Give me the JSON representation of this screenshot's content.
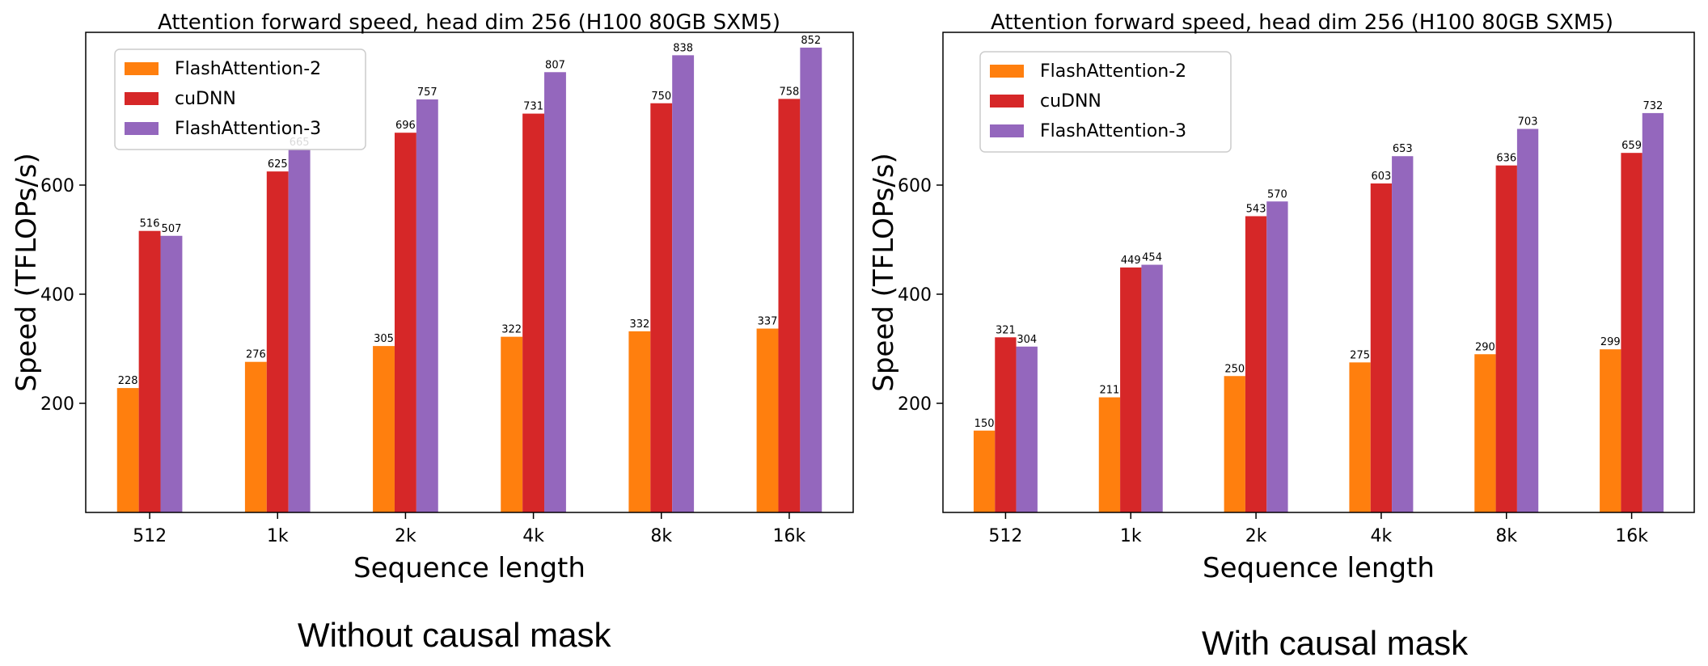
{
  "captions": {
    "left": "Without causal mask",
    "right": "With causal mask"
  },
  "colors": {
    "FlashAttention-2": "#ff7f0e",
    "cuDNN": "#d62728",
    "FlashAttention-3": "#9467bd"
  },
  "chart_data": [
    {
      "type": "bar",
      "title": "Attention forward speed, head dim 256 (H100 80GB SXM5)",
      "xlabel": "Sequence length",
      "ylabel": "Speed (TFLOPs/s)",
      "categories": [
        "512",
        "1k",
        "2k",
        "4k",
        "8k",
        "16k"
      ],
      "ylim": [
        0,
        880
      ],
      "yticks": [
        200,
        400,
        600
      ],
      "legend_position": "top-left",
      "grid": false,
      "series": [
        {
          "name": "FlashAttention-2",
          "values": [
            228,
            276,
            305,
            322,
            332,
            337
          ]
        },
        {
          "name": "cuDNN",
          "values": [
            516,
            625,
            696,
            731,
            750,
            758
          ]
        },
        {
          "name": "FlashAttention-3",
          "values": [
            507,
            665,
            757,
            807,
            838,
            852
          ]
        }
      ]
    },
    {
      "type": "bar",
      "title": "Attention forward speed, head dim 256 (H100 80GB SXM5)",
      "xlabel": "Sequence length",
      "ylabel": "Speed (TFLOPs/s)",
      "categories": [
        "512",
        "1k",
        "2k",
        "4k",
        "8k",
        "16k"
      ],
      "ylim": [
        0,
        880
      ],
      "yticks": [
        200,
        400,
        600
      ],
      "legend_position": "top-left",
      "grid": false,
      "series": [
        {
          "name": "FlashAttention-2",
          "values": [
            150,
            211,
            250,
            275,
            290,
            299
          ]
        },
        {
          "name": "cuDNN",
          "values": [
            321,
            449,
            543,
            603,
            636,
            659
          ]
        },
        {
          "name": "FlashAttention-3",
          "values": [
            304,
            454,
            570,
            653,
            703,
            732
          ]
        }
      ]
    }
  ]
}
